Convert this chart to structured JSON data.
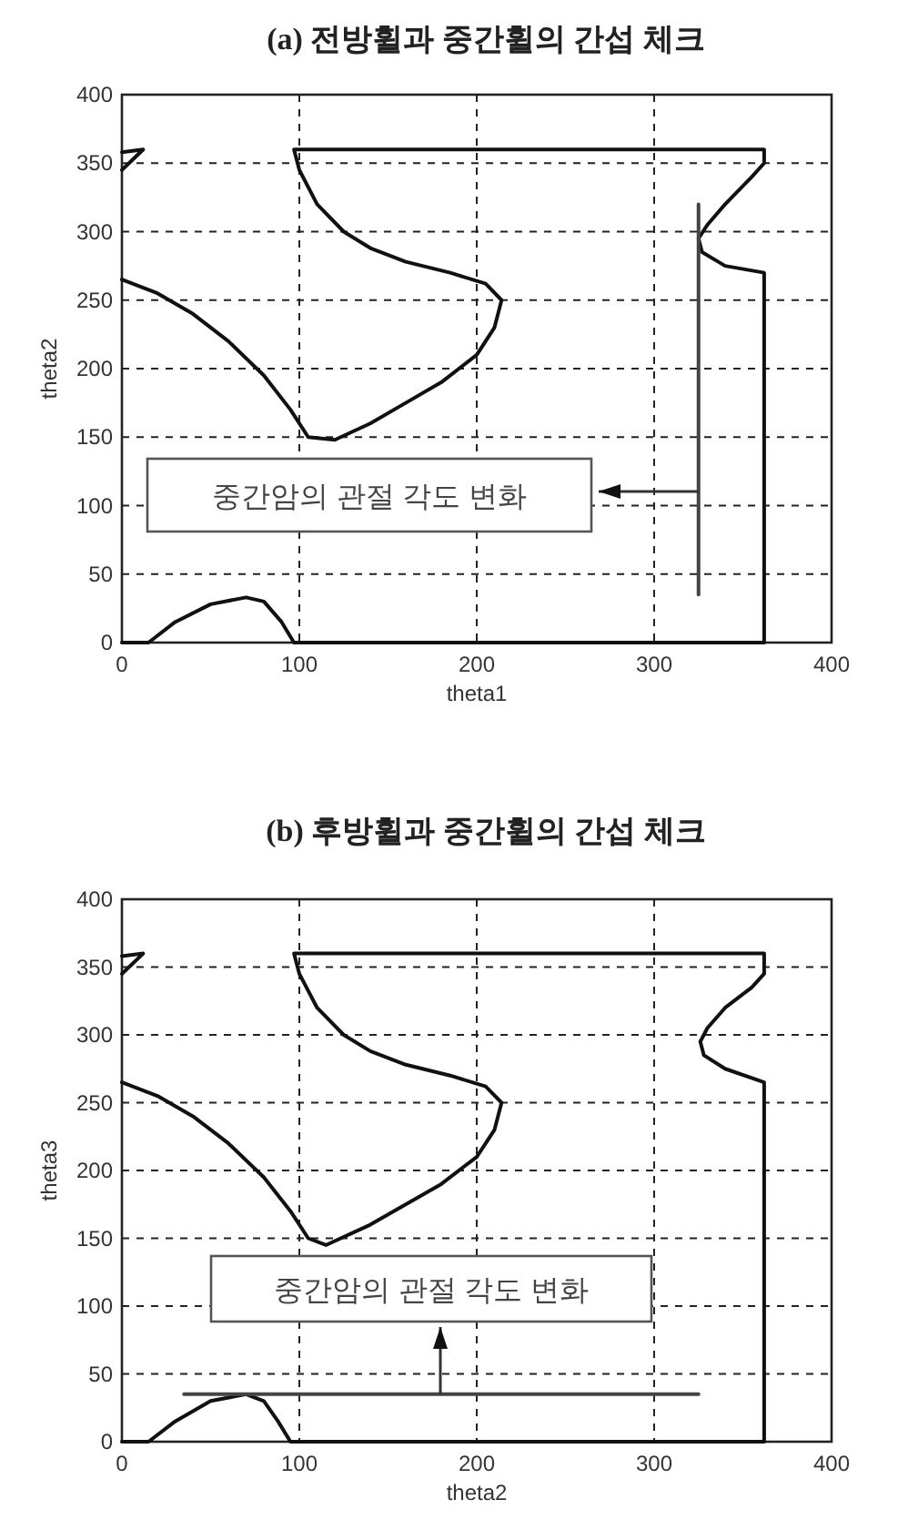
{
  "chart_data": [
    {
      "type": "line",
      "title": "(a) 전방휠과 중간휠의 간섭 체크",
      "xlabel": "theta1",
      "ylabel": "theta2",
      "xlim": [
        0,
        400
      ],
      "ylim": [
        0,
        400
      ],
      "xticks": [
        0,
        100,
        200,
        300,
        400
      ],
      "yticks": [
        0,
        50,
        100,
        150,
        200,
        250,
        300,
        350,
        400
      ],
      "grid": true,
      "series": [
        {
          "color": "#111111",
          "x": [
            0,
            20,
            40,
            60,
            80,
            95,
            105,
            120,
            140,
            160,
            180,
            200,
            210,
            214,
            205,
            185,
            160,
            140,
            125,
            110,
            100,
            97,
            362,
            362,
            355,
            340,
            330,
            325,
            327,
            340,
            362,
            362,
            97,
            90,
            80,
            70,
            50,
            30,
            15,
            0
          ],
          "values": [
            265,
            255,
            240,
            220,
            195,
            170,
            150,
            148,
            160,
            175,
            190,
            210,
            230,
            250,
            262,
            270,
            278,
            288,
            300,
            320,
            345,
            360,
            360,
            350,
            340,
            320,
            305,
            295,
            285,
            275,
            270,
            0,
            0,
            15,
            30,
            33,
            28,
            15,
            0,
            0
          ]
        },
        {
          "color": "#111111",
          "x": [
            0,
            12,
            0
          ],
          "values": [
            345,
            360,
            358
          ]
        },
        {
          "color": "#444444",
          "x": [
            325,
            325
          ],
          "values": [
            35,
            320
          ]
        }
      ],
      "annotations": [
        "중간암의 관절 각도 변화"
      ]
    },
    {
      "type": "line",
      "title": "(b) 후방휠과 중간휠의 간섭 체크",
      "xlabel": "theta2",
      "ylabel": "theta3",
      "xlim": [
        0,
        400
      ],
      "ylim": [
        0,
        400
      ],
      "xticks": [
        0,
        100,
        200,
        300,
        400
      ],
      "yticks": [
        0,
        50,
        100,
        150,
        200,
        250,
        300,
        350,
        400
      ],
      "grid": true,
      "series": [
        {
          "color": "#111111",
          "x": [
            0,
            20,
            40,
            60,
            80,
            95,
            105,
            115,
            140,
            160,
            180,
            200,
            210,
            214,
            205,
            185,
            160,
            140,
            125,
            110,
            100,
            97,
            362,
            362,
            355,
            340,
            330,
            326,
            328,
            340,
            362,
            362,
            95,
            88,
            80,
            70,
            50,
            30,
            15,
            0
          ],
          "values": [
            265,
            255,
            240,
            220,
            195,
            170,
            150,
            145,
            160,
            175,
            190,
            210,
            230,
            250,
            262,
            270,
            278,
            288,
            300,
            320,
            345,
            360,
            360,
            345,
            335,
            320,
            305,
            295,
            285,
            275,
            265,
            0,
            0,
            15,
            30,
            35,
            30,
            15,
            0,
            0
          ]
        },
        {
          "color": "#111111",
          "x": [
            0,
            12,
            0
          ],
          "values": [
            345,
            360,
            358
          ]
        },
        {
          "color": "#444444",
          "x": [
            35,
            325
          ],
          "values": [
            35,
            35
          ]
        }
      ],
      "annotations": [
        "중간암의 관절 각도 변화"
      ]
    }
  ]
}
